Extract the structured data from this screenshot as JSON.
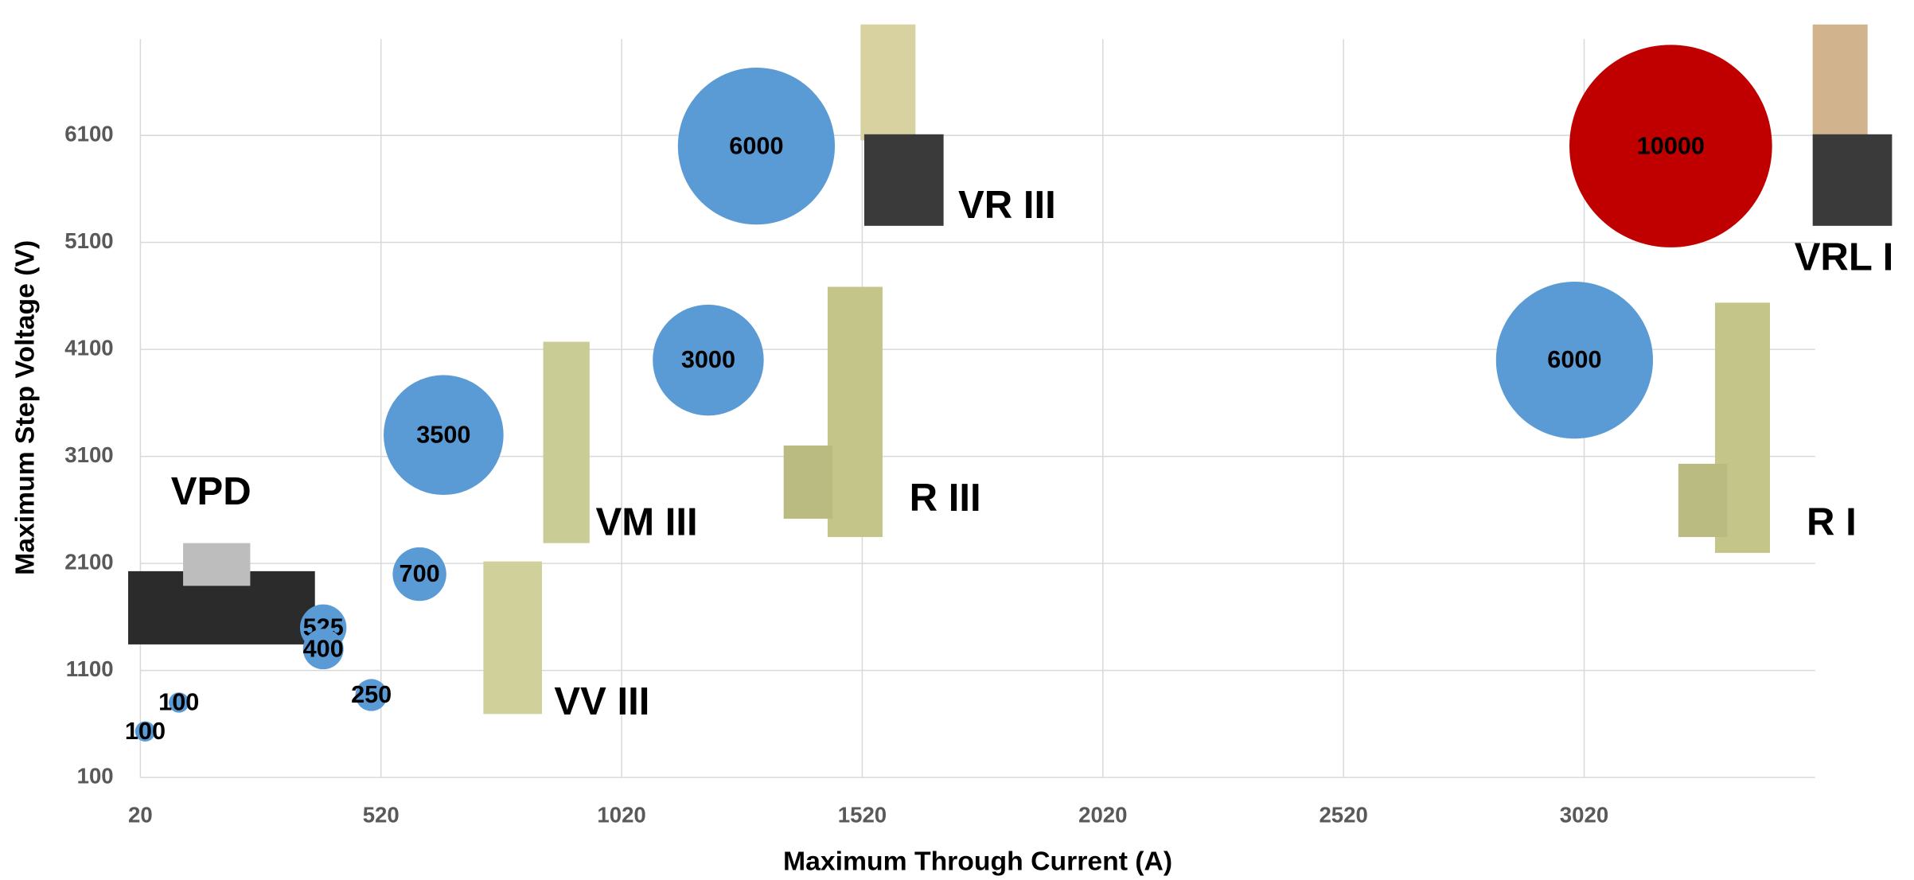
{
  "chart_data": {
    "type": "bubble",
    "x_label": "Maximum Through Current (A)",
    "y_label": "Maximum Step Voltage (V)",
    "x": [
      30,
      100,
      400,
      400,
      500,
      600,
      650,
      1200,
      1300,
      3000,
      3200
    ],
    "values": [
      530,
      800,
      1500,
      1300,
      870,
      2000,
      3300,
      4000,
      6000,
      4000,
      6000
    ],
    "sizes": [
      100,
      100,
      525,
      400,
      250,
      700,
      3500,
      3000,
      6000,
      6000,
      10000
    ],
    "colors": [
      "#5b9bd5",
      "#5b9bd5",
      "#5b9bd5",
      "#5b9bd5",
      "#5b9bd5",
      "#5b9bd5",
      "#5b9bd5",
      "#5b9bd5",
      "#5b9bd5",
      "#5b9bd5",
      "#c00000"
    ],
    "xlim": [
      20,
      3500
    ],
    "xticks": [
      20,
      520,
      1020,
      1520,
      2020,
      2520,
      3020
    ],
    "ylim": [
      100,
      7000
    ],
    "yticks": [
      100,
      1100,
      2100,
      3100,
      4100,
      5100,
      6100
    ],
    "grid": true,
    "annotations": [
      "VPD",
      "VR III",
      "VM III",
      "R III",
      "VV III",
      "VRL I",
      "R I"
    ]
  }
}
